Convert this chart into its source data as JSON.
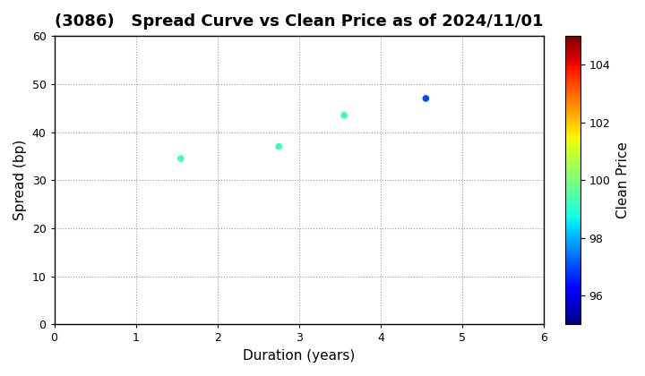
{
  "title": "(3086)   Spread Curve vs Clean Price as of 2024/11/01",
  "xlabel": "Duration (years)",
  "ylabel": "Spread (bp)",
  "colorbar_label": "Clean Price",
  "xlim": [
    0,
    6
  ],
  "ylim": [
    0,
    60
  ],
  "xticks": [
    0,
    1,
    2,
    3,
    4,
    5,
    6
  ],
  "yticks": [
    0,
    10,
    20,
    30,
    40,
    50,
    60
  ],
  "colorbar_ticks": [
    96,
    98,
    100,
    102,
    104
  ],
  "cmap_vmin": 95,
  "cmap_vmax": 105,
  "data_points": [
    {
      "duration": 1.55,
      "spread": 34.5,
      "clean_price": 99.3
    },
    {
      "duration": 2.75,
      "spread": 37.0,
      "clean_price": 99.2
    },
    {
      "duration": 3.55,
      "spread": 43.5,
      "clean_price": 99.1
    },
    {
      "duration": 4.55,
      "spread": 47.0,
      "clean_price": 97.0
    }
  ],
  "marker_size": 20,
  "background_color": "#ffffff",
  "grid_color": "#999999",
  "title_fontsize": 13,
  "label_fontsize": 11,
  "figsize": [
    7.2,
    4.2
  ],
  "dpi": 100
}
